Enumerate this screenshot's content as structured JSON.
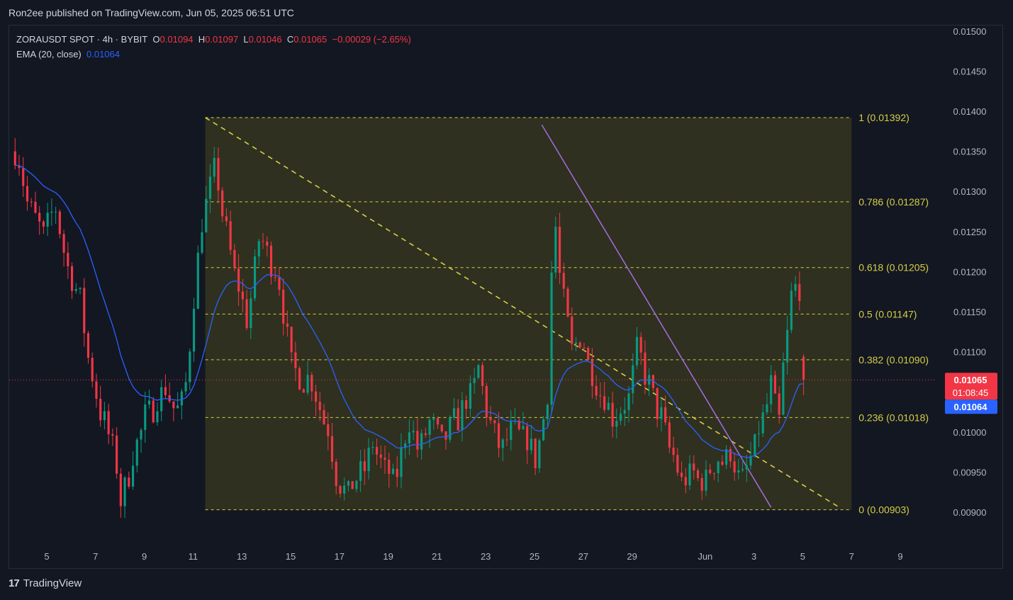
{
  "header": {
    "publisher": "Ron2ee published on TradingView.com, Jun 05, 2025 06:51 UTC"
  },
  "legend": {
    "symbol": "ZORAUSDT SPOT · 4h · BYBIT",
    "open_label": "O",
    "open": "0.01094",
    "high_label": "H",
    "high": "0.01097",
    "low_label": "L",
    "low": "0.01046",
    "close_label": "C",
    "close": "0.01065",
    "change": "−0.00029 (−2.65%)",
    "ema_label": "EMA (20, close)",
    "ema_value": "0.01064"
  },
  "footer": {
    "brand": "TradingView",
    "logo_icon": "tradingview-logo-icon"
  },
  "colors": {
    "background": "#131722",
    "up": "#089981",
    "down": "#f23645",
    "ema": "#2962ff",
    "fib": "#d4cf44",
    "trendline": "#9c6ad8",
    "fib_zone": "#3a3a1f"
  },
  "chart_data": {
    "type": "candlestick",
    "symbol": "ZORAUSDT SPOT",
    "timeframe": "4h",
    "exchange": "BYBIT",
    "ylim": [
      0.0087,
      0.0151
    ],
    "y_ticks": [
      "0.01500",
      "0.01450",
      "0.01400",
      "0.01350",
      "0.01300",
      "0.01250",
      "0.01200",
      "0.01150",
      "0.01100",
      "0.01000",
      "0.00950",
      "0.00900"
    ],
    "x_ticks": [
      {
        "label": "5",
        "day": 5
      },
      {
        "label": "7",
        "day": 7
      },
      {
        "label": "9",
        "day": 9
      },
      {
        "label": "11",
        "day": 11
      },
      {
        "label": "13",
        "day": 13
      },
      {
        "label": "15",
        "day": 15
      },
      {
        "label": "17",
        "day": 17
      },
      {
        "label": "19",
        "day": 19
      },
      {
        "label": "21",
        "day": 21
      },
      {
        "label": "23",
        "day": 23
      },
      {
        "label": "25",
        "day": 25
      },
      {
        "label": "27",
        "day": 27
      },
      {
        "label": "29",
        "day": 29
      },
      {
        "label": "Jun",
        "day": 32
      },
      {
        "label": "3",
        "day": 34
      },
      {
        "label": "5",
        "day": 36
      },
      {
        "label": "7",
        "day": 38
      },
      {
        "label": "9",
        "day": 40
      }
    ],
    "fibonacci": {
      "start_day": 11.5,
      "end_day": 38.0,
      "levels": [
        {
          "ratio": 1,
          "price": 0.01392,
          "label": "1 (0.01392)"
        },
        {
          "ratio": 0.786,
          "price": 0.01287,
          "label": "0.786 (0.01287)"
        },
        {
          "ratio": 0.618,
          "price": 0.01205,
          "label": "0.618 (0.01205)"
        },
        {
          "ratio": 0.5,
          "price": 0.01147,
          "label": "0.5 (0.01147)"
        },
        {
          "ratio": 0.382,
          "price": 0.0109,
          "label": "0.382 (0.01090)"
        },
        {
          "ratio": 0.236,
          "price": 0.01018,
          "label": "0.236 (0.01018)"
        },
        {
          "ratio": 0,
          "price": 0.00903,
          "label": "0 (0.00903)"
        }
      ]
    },
    "trendlines": [
      {
        "style": "dashed",
        "color": "fib",
        "from": [
          11.5,
          0.01392
        ],
        "to": [
          37.5,
          0.00906
        ]
      },
      {
        "style": "solid",
        "color": "trendline",
        "from": [
          25.3,
          0.01383
        ],
        "to": [
          34.7,
          0.00906
        ]
      }
    ],
    "ohlc_anchors": [
      [
        3.8,
        0.0135,
        0.0133
      ],
      [
        4.3,
        0.0128,
        0.0127
      ],
      [
        4.8,
        0.0124,
        0.0125
      ],
      [
        5.3,
        0.0129,
        0.0128
      ],
      [
        5.8,
        0.0121,
        0.0121
      ],
      [
        6.3,
        0.0118,
        0.0117
      ],
      [
        6.8,
        0.0108,
        0.0107
      ],
      [
        7.3,
        0.0102,
        0.0101
      ],
      [
        7.8,
        0.0098,
        0.0097
      ],
      [
        8.0,
        0.0091,
        0.0091
      ],
      [
        8.5,
        0.0097,
        0.0096
      ],
      [
        9.0,
        0.0102,
        0.0101
      ],
      [
        9.4,
        0.0104,
        0.0103
      ],
      [
        9.8,
        0.0106,
        0.0105
      ],
      [
        10.2,
        0.0102,
        0.0103
      ],
      [
        10.6,
        0.0103,
        0.0104
      ],
      [
        11.0,
        0.0116,
        0.0115
      ],
      [
        11.5,
        0.0128,
        0.013
      ],
      [
        11.9,
        0.0134,
        0.0133
      ],
      [
        12.3,
        0.0126,
        0.0125
      ],
      [
        12.8,
        0.0119,
        0.0118
      ],
      [
        13.2,
        0.0113,
        0.0114
      ],
      [
        13.7,
        0.0125,
        0.0124
      ],
      [
        14.2,
        0.0122,
        0.0121
      ],
      [
        14.6,
        0.0117,
        0.0118
      ],
      [
        15.1,
        0.0108,
        0.0107
      ],
      [
        15.6,
        0.0107,
        0.0106
      ],
      [
        16.0,
        0.0105,
        0.0106
      ],
      [
        16.5,
        0.0101,
        0.01
      ],
      [
        16.9,
        0.0094,
        0.0094
      ],
      [
        17.4,
        0.0093,
        0.0092
      ],
      [
        17.9,
        0.0094,
        0.0095
      ],
      [
        18.4,
        0.0098,
        0.0099
      ],
      [
        18.9,
        0.0096,
        0.0095
      ],
      [
        19.3,
        0.0094,
        0.0093
      ],
      [
        19.8,
        0.0102,
        0.0101
      ],
      [
        20.3,
        0.0098,
        0.0097
      ],
      [
        20.8,
        0.0101,
        0.0102
      ],
      [
        21.3,
        0.0099,
        0.0098
      ],
      [
        21.8,
        0.0101,
        0.0102
      ],
      [
        22.3,
        0.0104,
        0.0105
      ],
      [
        22.7,
        0.0108,
        0.0107
      ],
      [
        23.2,
        0.0101,
        0.01
      ],
      [
        23.7,
        0.0098,
        0.0097
      ],
      [
        24.2,
        0.01,
        0.0101
      ],
      [
        24.6,
        0.01,
        0.0099
      ],
      [
        25.1,
        0.0097,
        0.0096
      ],
      [
        25.5,
        0.0102,
        0.0104
      ],
      [
        25.8,
        0.0128,
        0.0129
      ],
      [
        26.1,
        0.0118,
        0.0117
      ],
      [
        26.5,
        0.011,
        0.0111
      ],
      [
        26.9,
        0.0113,
        0.0112
      ],
      [
        27.3,
        0.0108,
        0.0107
      ],
      [
        27.8,
        0.0105,
        0.0104
      ],
      [
        28.3,
        0.0102,
        0.0101
      ],
      [
        28.8,
        0.0103,
        0.0104
      ],
      [
        29.3,
        0.011,
        0.0112
      ],
      [
        29.7,
        0.0106,
        0.0105
      ],
      [
        30.2,
        0.0102,
        0.0101
      ],
      [
        30.6,
        0.0098,
        0.0097
      ],
      [
        31.1,
        0.0094,
        0.0093
      ],
      [
        31.6,
        0.0094,
        0.0095
      ],
      [
        32.1,
        0.0095,
        0.0094
      ],
      [
        32.6,
        0.0096,
        0.0097
      ],
      [
        33.0,
        0.0098,
        0.0097
      ],
      [
        33.4,
        0.0093,
        0.0094
      ],
      [
        33.9,
        0.0096,
        0.0097
      ],
      [
        34.3,
        0.0101,
        0.0102
      ],
      [
        34.7,
        0.0106,
        0.0105
      ],
      [
        35.0,
        0.01,
        0.0101
      ],
      [
        35.3,
        0.011,
        0.0112
      ],
      [
        35.6,
        0.0118,
        0.0119
      ],
      [
        35.9,
        0.012,
        0.0118
      ],
      [
        36.1,
        0.0109,
        0.01065
      ]
    ],
    "price_labels": {
      "last_price": "0.01065",
      "countdown": "01:08:45",
      "ema": "0.01064"
    }
  }
}
